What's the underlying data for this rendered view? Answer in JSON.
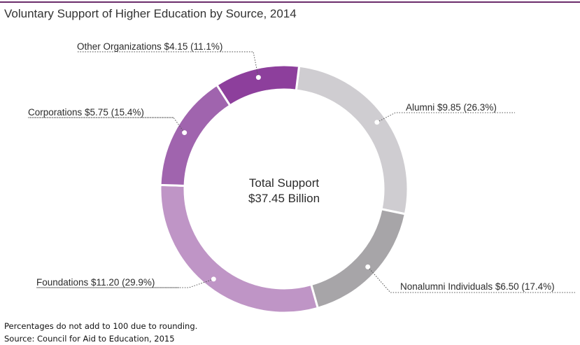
{
  "chart_data": {
    "type": "pie",
    "title": "Voluntary Support of Higher Education by Source, 2014",
    "center_label": [
      "Total Support",
      "$37.45 Billion"
    ],
    "slices": [
      {
        "name": "Alumni",
        "value": 9.85,
        "percent": 26.3,
        "label": "Alumni $9.85 (26.3%)",
        "color": "#cfcdd1"
      },
      {
        "name": "Nonalumni Individuals",
        "value": 6.5,
        "percent": 17.4,
        "label": "Nonalumni Individuals $6.50 (17.4%)",
        "color": "#a7a5a8"
      },
      {
        "name": "Foundations",
        "value": 11.2,
        "percent": 29.9,
        "label": "Foundations $11.20 (29.9%)",
        "color": "#bf95c6"
      },
      {
        "name": "Corporations",
        "value": 5.75,
        "percent": 15.4,
        "label": "Corporations $5.75 (15.4%)",
        "color": "#a064ae"
      },
      {
        "name": "Other Organizations",
        "value": 4.15,
        "percent": 11.1,
        "label": "Other Organizations $4.15 (11.1%)",
        "color": "#8d3f9c"
      }
    ]
  },
  "notes": {
    "rounding": "Percentages do not add to 100 due to rounding.",
    "source": "Source:  Council for Aid to Education, 2015"
  }
}
